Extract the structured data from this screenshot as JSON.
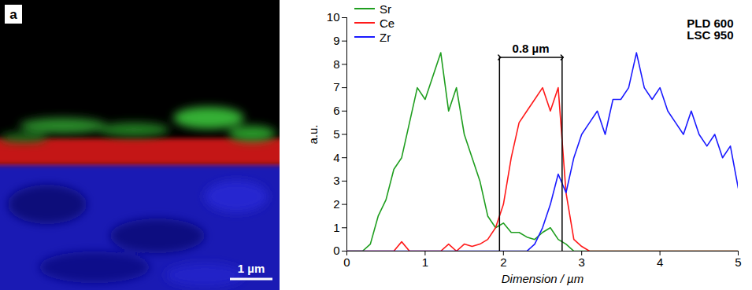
{
  "image_panel": {
    "label": "a",
    "scale_bar": "1 µm"
  },
  "chart_data": {
    "type": "line",
    "xlabel": "Dimension / µm",
    "ylabel": "a.u.",
    "x": [
      0,
      0.1,
      0.2,
      0.3,
      0.4,
      0.5,
      0.6,
      0.7,
      0.8,
      0.9,
      1.0,
      1.1,
      1.2,
      1.3,
      1.4,
      1.5,
      1.6,
      1.7,
      1.8,
      1.9,
      2.0,
      2.1,
      2.2,
      2.3,
      2.4,
      2.5,
      2.6,
      2.7,
      2.8,
      2.9,
      3.0,
      3.1,
      3.2,
      3.3,
      3.4,
      3.5,
      3.6,
      3.7,
      3.8,
      3.9,
      4.0,
      4.1,
      4.2,
      4.3,
      4.4,
      4.5,
      4.6,
      4.7,
      4.8,
      4.9,
      5.0
    ],
    "series": [
      {
        "name": "Sr",
        "color": "#1f9e1f",
        "values": [
          0,
          0,
          0,
          0.3,
          1.5,
          2.2,
          3.5,
          4,
          5.5,
          7,
          6.5,
          7.5,
          8.5,
          6,
          7,
          5,
          4,
          3,
          1.5,
          1,
          1.2,
          0.8,
          0.8,
          0.6,
          0.5,
          0.8,
          1,
          0.5,
          0.3,
          0,
          0,
          0,
          0,
          0,
          0,
          0,
          0,
          0,
          0,
          0,
          0,
          0,
          0,
          0,
          0,
          0,
          0,
          0,
          0,
          0,
          0
        ]
      },
      {
        "name": "Ce",
        "color": "#ff1a1a",
        "values": [
          0,
          0,
          0,
          0,
          0,
          0,
          0,
          0.4,
          0,
          0,
          0,
          0,
          0,
          0.3,
          0,
          0.3,
          0.2,
          0.3,
          0.5,
          1,
          2,
          4,
          5.5,
          6,
          6.5,
          7,
          6,
          7,
          2.5,
          0.5,
          0.2,
          0,
          0,
          0,
          0,
          0,
          0,
          0,
          0,
          0,
          0,
          0,
          0,
          0,
          0,
          0,
          0,
          0,
          0,
          0,
          0
        ]
      },
      {
        "name": "Zr",
        "color": "#1a1aff",
        "values": [
          0,
          0,
          0,
          0,
          0,
          0,
          0,
          0,
          0,
          0,
          0,
          0,
          0,
          0,
          0,
          0,
          0,
          0,
          0,
          0,
          0,
          0,
          0,
          0,
          0.3,
          1,
          2,
          3.3,
          2.5,
          4,
          5,
          5.5,
          6,
          5,
          6.5,
          6.5,
          7,
          8.5,
          7,
          6.5,
          7,
          6,
          5.5,
          5,
          6,
          5,
          4.5,
          5,
          4,
          4.5,
          2.7
        ]
      }
    ],
    "xlim": [
      0,
      5
    ],
    "xticks": [
      0,
      1,
      2,
      3,
      4,
      5
    ],
    "ylim": [
      0,
      10
    ],
    "yticks": [
      0,
      1,
      2,
      3,
      4,
      5,
      6,
      7,
      8,
      9,
      10
    ],
    "grid": false,
    "legend": "top-left",
    "bracket": {
      "label": "0.8 µm",
      "x1": 1.95,
      "x2": 2.75,
      "y": 8.3
    },
    "annotations": [
      "PLD 600",
      "LSC 950"
    ]
  }
}
